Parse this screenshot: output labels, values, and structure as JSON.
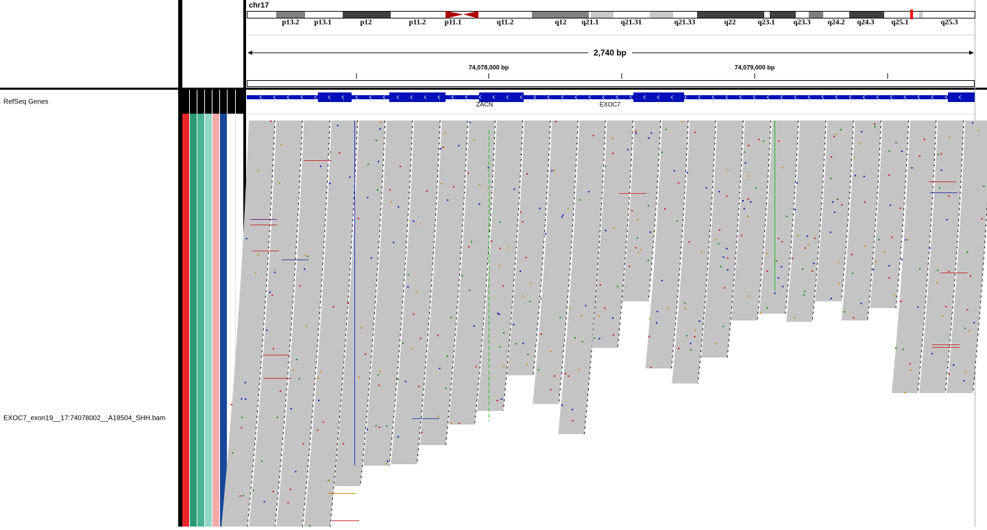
{
  "header": {
    "chromosome": "chr17",
    "bands": [
      "p13.2",
      "p13.1",
      "p12",
      "p11.2",
      "p11.1",
      "q11.2",
      "q12",
      "q21.1",
      "q21.31",
      "q21.33",
      "q22",
      "q23.1",
      "q23.3",
      "q24.2",
      "q24.3",
      "q25.1",
      "q25.3"
    ],
    "span": "2,740 bp",
    "ruler_labels": [
      "74,078,000 bp",
      "74,079,000 bp"
    ]
  },
  "tracks": {
    "genes": {
      "name": "RefSeq Genes",
      "labels": [
        "ZACN",
        "EXOC7"
      ]
    },
    "alignment": {
      "name": "EXOC7_exon19__17:74078002__A18504_SHH.bam"
    }
  }
}
